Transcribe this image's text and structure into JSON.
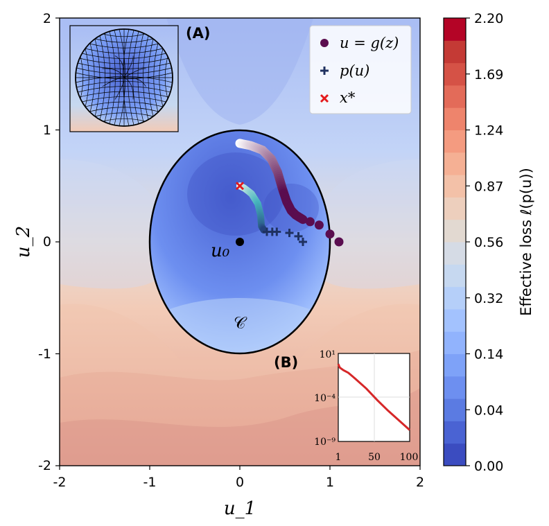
{
  "chart_data": {
    "type": "contour",
    "xlabel": "u_1",
    "ylabel": "u_2",
    "xlim": [
      -2,
      2
    ],
    "ylim": [
      -2,
      2
    ],
    "xticks": [
      "-2",
      "-1",
      "0",
      "1",
      "2"
    ],
    "yticks": [
      "-2",
      "-1",
      "0",
      "1",
      "2"
    ],
    "colorbar": {
      "label": "Effective loss ℓ(p(u))",
      "ticks": [
        "0.00",
        "0.04",
        "0.14",
        "0.32",
        "0.56",
        "0.87",
        "1.24",
        "1.69",
        "2.20"
      ],
      "colors": [
        "#3b4cc0",
        "#4a63d3",
        "#5b7be2",
        "#6d8ff0",
        "#7ea2f8",
        "#91b3fd",
        "#a3c2fe",
        "#b5cff9",
        "#c6d8f0",
        "#d5dbe5",
        "#e2d9d1",
        "#edcfbd",
        "#f3c1a8",
        "#f5b094",
        "#f49b80",
        "#ee846c",
        "#e36b59",
        "#d55246",
        "#c43a35",
        "#b40426"
      ]
    },
    "region_label": "𝒞",
    "u0_label": "u₀",
    "u0": [
      0,
      0
    ],
    "x_star": [
      0,
      0.5
    ],
    "trajectory_g": [
      [
        0,
        0.88
      ],
      [
        0.12,
        0.86
      ],
      [
        0.25,
        0.82
      ],
      [
        0.35,
        0.74
      ],
      [
        0.42,
        0.62
      ],
      [
        0.47,
        0.48
      ],
      [
        0.52,
        0.36
      ],
      [
        0.57,
        0.28
      ],
      [
        0.62,
        0.24
      ],
      [
        0.7,
        0.2
      ],
      [
        0.78,
        0.18
      ],
      [
        0.88,
        0.15
      ],
      [
        1.0,
        0.07
      ],
      [
        1.1,
        0.0
      ]
    ],
    "trajectory_p_line": [
      [
        0,
        0.5
      ],
      [
        0.05,
        0.48
      ],
      [
        0.13,
        0.43
      ],
      [
        0.2,
        0.34
      ],
      [
        0.23,
        0.24
      ],
      [
        0.24,
        0.14
      ],
      [
        0.27,
        0.1
      ]
    ],
    "p_markers": [
      [
        0.3,
        0.09
      ],
      [
        0.36,
        0.09
      ],
      [
        0.41,
        0.09
      ],
      [
        0.55,
        0.08
      ],
      [
        0.65,
        0.05
      ],
      [
        0.7,
        0.0
      ]
    ],
    "legend": [
      {
        "label": "u = g(z)",
        "marker": "circle",
        "color": "#5a0d4f"
      },
      {
        "label": "p(u)",
        "marker": "plus",
        "color": "#1f3160"
      },
      {
        "label": "x*",
        "marker": "x",
        "color": "#e41a1c"
      }
    ],
    "inset_A": {
      "label": "(A)",
      "content": "sphere"
    },
    "inset_B": {
      "label": "(B)",
      "xticks": [
        "1",
        "50",
        "100"
      ],
      "yticks": [
        "10¹",
        "10⁻⁴",
        "10⁻⁹"
      ],
      "xlim": [
        1,
        100
      ],
      "ylog_range": [
        -9,
        1
      ],
      "curve": [
        [
          1,
          -0.2
        ],
        [
          3,
          -0.6
        ],
        [
          8,
          -0.9
        ],
        [
          15,
          -1.2
        ],
        [
          25,
          -1.9
        ],
        [
          40,
          -3.0
        ],
        [
          55,
          -4.3
        ],
        [
          70,
          -5.5
        ],
        [
          85,
          -6.6
        ],
        [
          100,
          -7.7
        ]
      ],
      "line_color": "#d62728"
    }
  }
}
